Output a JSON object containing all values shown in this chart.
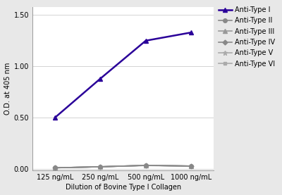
{
  "x_labels": [
    "125 ng/mL",
    "250 ng/mL",
    "500 ng/mL",
    "1000 ng/mL"
  ],
  "x_values": [
    0,
    1,
    2,
    3
  ],
  "series": [
    {
      "label": "Anti-Type I",
      "values": [
        0.5,
        0.88,
        1.25,
        1.33
      ],
      "color": "#2A0099",
      "marker": "^",
      "linewidth": 1.8,
      "markersize": 5,
      "zorder": 10
    },
    {
      "label": "Anti-Type II",
      "values": [
        0.008,
        0.018,
        0.03,
        0.025
      ],
      "color": "#888888",
      "marker": "o",
      "linewidth": 1.2,
      "markersize": 4,
      "zorder": 5
    },
    {
      "label": "Anti-Type III",
      "values": [
        0.008,
        0.018,
        0.032,
        0.025
      ],
      "color": "#999999",
      "marker": "^",
      "linewidth": 1.2,
      "markersize": 4,
      "zorder": 4
    },
    {
      "label": "Anti-Type IV",
      "values": [
        0.008,
        0.018,
        0.032,
        0.025
      ],
      "color": "#888888",
      "marker": "D",
      "linewidth": 1.2,
      "markersize": 3.5,
      "zorder": 3
    },
    {
      "label": "Anti-Type V",
      "values": [
        0.008,
        0.018,
        0.032,
        0.025
      ],
      "color": "#aaaaaa",
      "marker": "*",
      "linewidth": 1.2,
      "markersize": 5,
      "zorder": 2
    },
    {
      "label": "Anti-Type VI",
      "values": [
        0.008,
        0.018,
        0.032,
        0.025
      ],
      "color": "#aaaaaa",
      "marker": "s",
      "linewidth": 1.2,
      "markersize": 3.5,
      "zorder": 1
    }
  ],
  "ylabel": "O.D. at 405 nm",
  "xlabel": "Dilution of Bovine Type I Collagen",
  "ylim": [
    -0.02,
    1.58
  ],
  "yticks": [
    0.0,
    0.5,
    1.0,
    1.5
  ],
  "background_color": "#e8e8e8",
  "plot_bg_color": "#ffffff",
  "axis_label_fontsize": 7,
  "tick_fontsize": 7,
  "legend_fontsize": 7
}
